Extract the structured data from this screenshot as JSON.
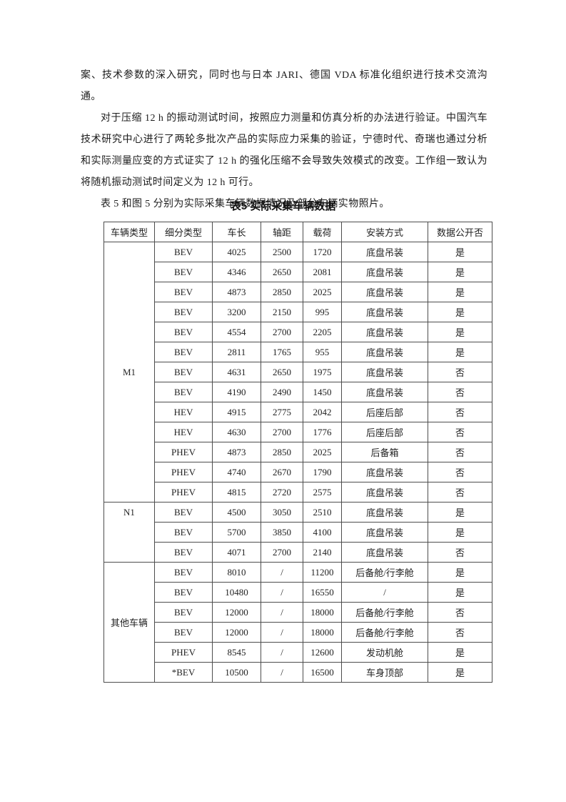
{
  "colors": {
    "page_background": "#ffffff",
    "text": "#1c1c1c",
    "table_border": "#4d4d4d"
  },
  "paragraphs": [
    {
      "indent": false,
      "text": "案、技术参数的深入研究，同时也与日本 JARI、德国 VDA 标准化组织进行技术交流沟通。"
    },
    {
      "indent": true,
      "text": "对于压缩 12 h 的振动测试时间，按照应力测量和仿真分析的办法进行验证。中国汽车技术研究中心进行了两轮多批次产品的实际应力采集的验证，宁德时代、奇瑞也通过分析和实际测量应变的方式证实了 12 h 的强化压缩不会导致失效模式的改变。工作组一致认为将随机振动测试时间定义为 12 h 可行。"
    },
    {
      "indent": true,
      "text": "表 5 和图 5 分别为实际采集车辆数据情况及部分车辆实物照片。"
    }
  ],
  "table_title": "表5  实际采集车辆数据",
  "table": {
    "headers": [
      "车辆类型",
      "细分类型",
      "车长",
      "轴距",
      "载荷",
      "安装方式",
      "数据公开否"
    ],
    "groups": [
      {
        "type": "M1",
        "valign": "middle",
        "rows": [
          [
            "BEV",
            "4025",
            "2500",
            "1720",
            "底盘吊装",
            "是"
          ],
          [
            "BEV",
            "4346",
            "2650",
            "2081",
            "底盘吊装",
            "是"
          ],
          [
            "BEV",
            "4873",
            "2850",
            "2025",
            "底盘吊装",
            "是"
          ],
          [
            "BEV",
            "3200",
            "2150",
            "995",
            "底盘吊装",
            "是"
          ],
          [
            "BEV",
            "4554",
            "2700",
            "2205",
            "底盘吊装",
            "是"
          ],
          [
            "BEV",
            "2811",
            "1765",
            "955",
            "底盘吊装",
            "是"
          ],
          [
            "BEV",
            "4631",
            "2650",
            "1975",
            "底盘吊装",
            "否"
          ],
          [
            "BEV",
            "4190",
            "2490",
            "1450",
            "底盘吊装",
            "否"
          ],
          [
            "HEV",
            "4915",
            "2775",
            "2042",
            "后座后部",
            "否"
          ],
          [
            "HEV",
            "4630",
            "2700",
            "1776",
            "后座后部",
            "否"
          ],
          [
            "PHEV",
            "4873",
            "2850",
            "2025",
            "后备箱",
            "否"
          ],
          [
            "PHEV",
            "4740",
            "2670",
            "1790",
            "底盘吊装",
            "否"
          ],
          [
            "PHEV",
            "4815",
            "2720",
            "2575",
            "底盘吊装",
            "否"
          ]
        ]
      },
      {
        "type": "N1",
        "valign": "top",
        "rows": [
          [
            "BEV",
            "4500",
            "3050",
            "2510",
            "底盘吊装",
            "是"
          ],
          [
            "BEV",
            "5700",
            "3850",
            "4100",
            "底盘吊装",
            "是"
          ],
          [
            "BEV",
            "4071",
            "2700",
            "2140",
            "底盘吊装",
            "否"
          ]
        ]
      },
      {
        "type": "其他车辆",
        "valign": "middle",
        "rows": [
          [
            "BEV",
            "8010",
            "/",
            "11200",
            "后备舱/行李舱",
            "是"
          ],
          [
            "BEV",
            "10480",
            "/",
            "16550",
            "/",
            "是"
          ],
          [
            "BEV",
            "12000",
            "/",
            "18000",
            "后备舱/行李舱",
            "否"
          ],
          [
            "BEV",
            "12000",
            "/",
            "18000",
            "后备舱/行李舱",
            "否"
          ],
          [
            "PHEV",
            "8545",
            "/",
            "12600",
            "发动机舱",
            "是"
          ],
          [
            "*BEV",
            "10500",
            "/",
            "16500",
            "车身顶部",
            "是"
          ]
        ]
      }
    ]
  }
}
